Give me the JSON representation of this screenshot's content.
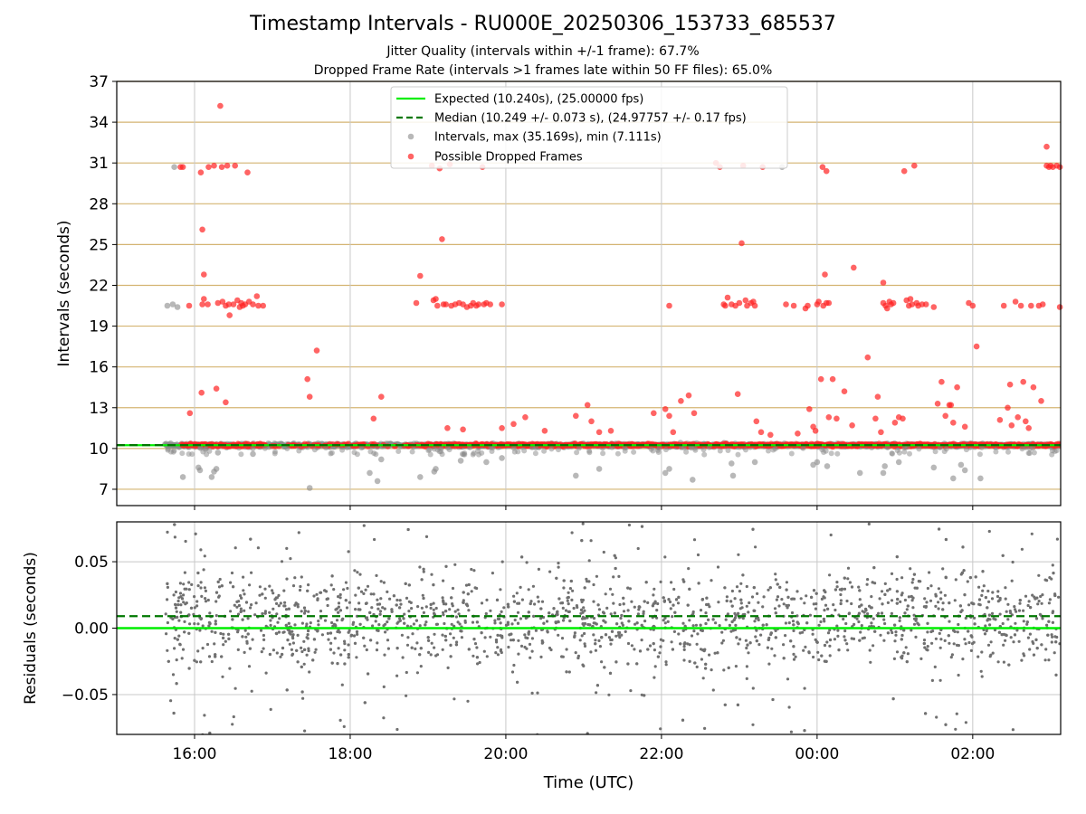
{
  "page": {
    "title": "Timestamp Intervals - RU000E_20250306_153733_685537",
    "subtitle_jitter": "Jitter Quality (intervals within +/-1 frame): 67.7%",
    "subtitle_dropped": "Dropped Frame Rate (intervals >1 frames late within 50 FF files): 65.0%"
  },
  "colors": {
    "expected": "#00ee00",
    "median": "#007700",
    "intervals": "#888888",
    "dropped": "#ff2222",
    "hgrid_top": "#d4b472",
    "vgrid": "#c8c8c8",
    "residual_points": "#707070"
  },
  "chart_data": [
    {
      "type": "scatter",
      "panel": "intervals",
      "xlabel": "",
      "ylabel": "Intervals (seconds)",
      "x_ticks": [
        "16:00",
        "18:00",
        "20:00",
        "22:00",
        "00:00",
        "02:00"
      ],
      "xlim_hours": [
        15.0,
        27.13
      ],
      "y_ticks": [
        7,
        10,
        13,
        16,
        19,
        22,
        25,
        28,
        31,
        34,
        37
      ],
      "ylim": [
        5.8,
        37
      ],
      "grid": "horizontal lines at y ticks, vertical lines at x ticks",
      "legend_position": "top-center",
      "legend": [
        "Expected (10.240s), (25.00000 fps)",
        "Median (10.249 +/- 0.073 s), (24.97757 +/- 0.17 fps)",
        "Intervals, max (35.169s), min (7.111s)",
        "Possible Dropped Frames"
      ],
      "expected_interval": 10.24,
      "median_interval": 10.249,
      "series": [
        {
          "name": "Intervals, max (35.169s), min (7.111s)",
          "points": [
            [
              15.65,
              20.5
            ],
            [
              15.72,
              20.6
            ],
            [
              15.78,
              20.4
            ],
            [
              15.74,
              30.7
            ],
            [
              15.85,
              7.9
            ],
            [
              16.05,
              8.6
            ],
            [
              16.07,
              8.4
            ],
            [
              16.22,
              7.9
            ],
            [
              16.25,
              8.3
            ],
            [
              16.28,
              8.5
            ],
            [
              16.3,
              9.7
            ],
            [
              16.75,
              9.6
            ],
            [
              17.48,
              7.1
            ],
            [
              18.25,
              8.2
            ],
            [
              18.35,
              7.6
            ],
            [
              18.4,
              9.2
            ],
            [
              18.9,
              7.9
            ],
            [
              19.08,
              8.3
            ],
            [
              19.1,
              8.5
            ],
            [
              19.42,
              9.1
            ],
            [
              19.75,
              9.0
            ],
            [
              19.95,
              9.3
            ],
            [
              20.9,
              8.0
            ],
            [
              21.2,
              8.5
            ],
            [
              22.05,
              8.2
            ],
            [
              22.1,
              8.5
            ],
            [
              22.4,
              7.7
            ],
            [
              22.9,
              8.9
            ],
            [
              22.92,
              8.0
            ],
            [
              23.2,
              9.0
            ],
            [
              23.55,
              30.7
            ],
            [
              23.95,
              8.8
            ],
            [
              24.0,
              9.0
            ],
            [
              24.13,
              8.7
            ],
            [
              24.55,
              8.2
            ],
            [
              24.85,
              8.2
            ],
            [
              24.87,
              8.7
            ],
            [
              25.05,
              9.0
            ],
            [
              25.5,
              8.6
            ],
            [
              25.75,
              7.8
            ],
            [
              25.85,
              8.8
            ],
            [
              25.9,
              8.4
            ],
            [
              26.1,
              7.8
            ]
          ]
        },
        {
          "name": "Possible Dropped Frames",
          "points": [
            [
              15.82,
              30.7
            ],
            [
              15.85,
              30.7
            ],
            [
              15.93,
              20.5
            ],
            [
              15.94,
              12.6
            ],
            [
              16.08,
              30.3
            ],
            [
              16.1,
              26.1
            ],
            [
              16.12,
              22.8
            ],
            [
              16.09,
              14.1
            ],
            [
              16.1,
              20.6
            ],
            [
              16.12,
              21.0
            ],
            [
              16.17,
              20.6
            ],
            [
              16.18,
              30.7
            ],
            [
              16.25,
              30.8
            ],
            [
              16.28,
              14.4
            ],
            [
              16.3,
              20.7
            ],
            [
              16.33,
              35.2
            ],
            [
              16.35,
              30.7
            ],
            [
              16.36,
              20.8
            ],
            [
              16.4,
              20.5
            ],
            [
              16.4,
              13.4
            ],
            [
              16.42,
              30.8
            ],
            [
              16.44,
              20.6
            ],
            [
              16.45,
              19.8
            ],
            [
              16.5,
              20.6
            ],
            [
              16.52,
              30.8
            ],
            [
              16.55,
              20.9
            ],
            [
              16.58,
              20.4
            ],
            [
              16.6,
              20.7
            ],
            [
              16.62,
              20.5
            ],
            [
              16.65,
              20.6
            ],
            [
              16.68,
              30.3
            ],
            [
              16.7,
              20.8
            ],
            [
              16.75,
              20.6
            ],
            [
              16.8,
              21.2
            ],
            [
              16.82,
              20.5
            ],
            [
              16.88,
              20.5
            ],
            [
              17.45,
              15.1
            ],
            [
              17.48,
              13.8
            ],
            [
              17.57,
              17.2
            ],
            [
              18.3,
              12.2
            ],
            [
              18.4,
              13.8
            ],
            [
              18.9,
              22.7
            ],
            [
              19.05,
              30.8
            ],
            [
              19.07,
              20.9
            ],
            [
              19.1,
              21.0
            ],
            [
              19.12,
              20.5
            ],
            [
              19.15,
              30.6
            ],
            [
              19.18,
              25.4
            ],
            [
              19.2,
              20.6
            ],
            [
              19.23,
              20.6
            ],
            [
              19.25,
              11.5
            ],
            [
              19.28,
              30.9
            ],
            [
              19.3,
              20.5
            ],
            [
              19.35,
              20.6
            ],
            [
              19.4,
              20.7
            ],
            [
              19.45,
              20.6
            ],
            [
              19.5,
              20.4
            ],
            [
              19.55,
              20.5
            ],
            [
              19.58,
              20.7
            ],
            [
              19.62,
              20.5
            ],
            [
              19.65,
              20.6
            ],
            [
              19.7,
              30.7
            ],
            [
              19.72,
              20.6
            ],
            [
              19.75,
              20.7
            ],
            [
              19.8,
              20.6
            ],
            [
              18.85,
              20.7
            ],
            [
              19.45,
              11.4
            ],
            [
              19.95,
              20.6
            ],
            [
              19.95,
              11.5
            ],
            [
              20.1,
              11.8
            ],
            [
              20.25,
              12.3
            ],
            [
              20.5,
              11.3
            ],
            [
              20.9,
              12.4
            ],
            [
              21.05,
              13.2
            ],
            [
              21.1,
              12.0
            ],
            [
              21.2,
              11.2
            ],
            [
              21.35,
              11.3
            ],
            [
              21.9,
              12.6
            ],
            [
              22.05,
              12.9
            ],
            [
              22.1,
              12.4
            ],
            [
              22.1,
              20.5
            ],
            [
              22.15,
              11.2
            ],
            [
              22.25,
              13.5
            ],
            [
              22.35,
              13.9
            ],
            [
              22.42,
              12.6
            ],
            [
              22.7,
              31.0
            ],
            [
              22.75,
              30.7
            ],
            [
              22.8,
              20.6
            ],
            [
              22.82,
              20.5
            ],
            [
              22.85,
              21.1
            ],
            [
              22.9,
              20.6
            ],
            [
              22.95,
              20.5
            ],
            [
              22.98,
              14.0
            ],
            [
              23.0,
              20.7
            ],
            [
              23.03,
              25.1
            ],
            [
              23.05,
              30.8
            ],
            [
              23.08,
              20.9
            ],
            [
              23.1,
              20.5
            ],
            [
              23.15,
              20.7
            ],
            [
              23.18,
              20.8
            ],
            [
              23.2,
              20.5
            ],
            [
              23.22,
              12.0
            ],
            [
              23.28,
              11.2
            ],
            [
              23.3,
              30.7
            ],
            [
              23.4,
              11.0
            ],
            [
              23.6,
              20.6
            ],
            [
              23.7,
              20.5
            ],
            [
              23.75,
              11.1
            ],
            [
              23.85,
              20.3
            ],
            [
              23.88,
              20.5
            ],
            [
              23.9,
              12.9
            ],
            [
              23.95,
              11.6
            ],
            [
              23.98,
              11.3
            ],
            [
              24.0,
              20.6
            ],
            [
              24.02,
              20.8
            ],
            [
              24.05,
              15.1
            ],
            [
              24.07,
              30.7
            ],
            [
              24.08,
              20.5
            ],
            [
              24.1,
              22.8
            ],
            [
              24.12,
              20.7
            ],
            [
              24.12,
              30.4
            ],
            [
              24.15,
              20.7
            ],
            [
              24.15,
              12.3
            ],
            [
              24.2,
              15.1
            ],
            [
              24.25,
              12.2
            ],
            [
              24.35,
              14.2
            ],
            [
              24.45,
              11.7
            ],
            [
              24.47,
              23.3
            ],
            [
              24.65,
              16.7
            ],
            [
              24.75,
              12.2
            ],
            [
              24.78,
              13.8
            ],
            [
              24.82,
              11.2
            ],
            [
              24.85,
              22.2
            ],
            [
              24.85,
              20.7
            ],
            [
              24.88,
              20.5
            ],
            [
              24.9,
              20.3
            ],
            [
              24.93,
              20.8
            ],
            [
              24.95,
              20.6
            ],
            [
              24.98,
              20.7
            ],
            [
              25.0,
              11.9
            ],
            [
              25.05,
              12.3
            ],
            [
              25.1,
              12.2
            ],
            [
              25.12,
              30.4
            ],
            [
              25.15,
              20.9
            ],
            [
              25.18,
              20.5
            ],
            [
              25.2,
              21.0
            ],
            [
              25.22,
              20.6
            ],
            [
              25.25,
              30.8
            ],
            [
              25.28,
              20.7
            ],
            [
              25.3,
              20.5
            ],
            [
              25.35,
              20.6
            ],
            [
              25.4,
              20.6
            ],
            [
              25.5,
              20.4
            ],
            [
              25.55,
              13.3
            ],
            [
              25.6,
              14.9
            ],
            [
              25.65,
              12.4
            ],
            [
              25.7,
              13.2
            ],
            [
              25.72,
              13.2
            ],
            [
              25.75,
              11.9
            ],
            [
              25.8,
              14.5
            ],
            [
              25.9,
              11.6
            ],
            [
              25.95,
              20.7
            ],
            [
              26.0,
              20.5
            ],
            [
              26.05,
              17.5
            ],
            [
              26.35,
              12.1
            ],
            [
              26.4,
              20.5
            ],
            [
              26.45,
              13.0
            ],
            [
              26.48,
              14.7
            ],
            [
              26.5,
              11.7
            ],
            [
              26.55,
              20.8
            ],
            [
              26.58,
              12.3
            ],
            [
              26.62,
              20.5
            ],
            [
              26.65,
              14.9
            ],
            [
              26.68,
              12.0
            ],
            [
              26.72,
              11.5
            ],
            [
              26.75,
              20.5
            ],
            [
              26.78,
              14.5
            ],
            [
              26.85,
              20.5
            ],
            [
              26.88,
              13.5
            ],
            [
              26.9,
              20.6
            ],
            [
              26.95,
              30.8
            ],
            [
              26.98,
              30.7
            ],
            [
              26.95,
              32.2
            ],
            [
              27.0,
              30.8
            ],
            [
              27.03,
              30.7
            ],
            [
              27.08,
              30.8
            ],
            [
              27.12,
              30.7
            ],
            [
              27.12,
              20.4
            ]
          ]
        }
      ]
    },
    {
      "type": "scatter",
      "panel": "residuals",
      "xlabel": "Time (UTC)",
      "ylabel": "Residuals (seconds)",
      "x_ticks": [
        "16:00",
        "18:00",
        "20:00",
        "22:00",
        "00:00",
        "02:00"
      ],
      "xlim_hours": [
        15.0,
        27.13
      ],
      "y_ticks": [
        "0.05",
        "0.00",
        "−0.05"
      ],
      "y_tick_values": [
        0.05,
        0.0,
        -0.05
      ],
      "ylim": [
        -0.08,
        0.08
      ],
      "grid": "horizontal and vertical",
      "expected_residual": 0.0,
      "median_residual": 0.009,
      "series": [
        {
          "name": "Residuals",
          "x_range_hours": [
            15.6,
            27.13
          ],
          "approx_count": 2200,
          "spread_sd": 0.025,
          "bias": 0.007
        }
      ]
    }
  ]
}
